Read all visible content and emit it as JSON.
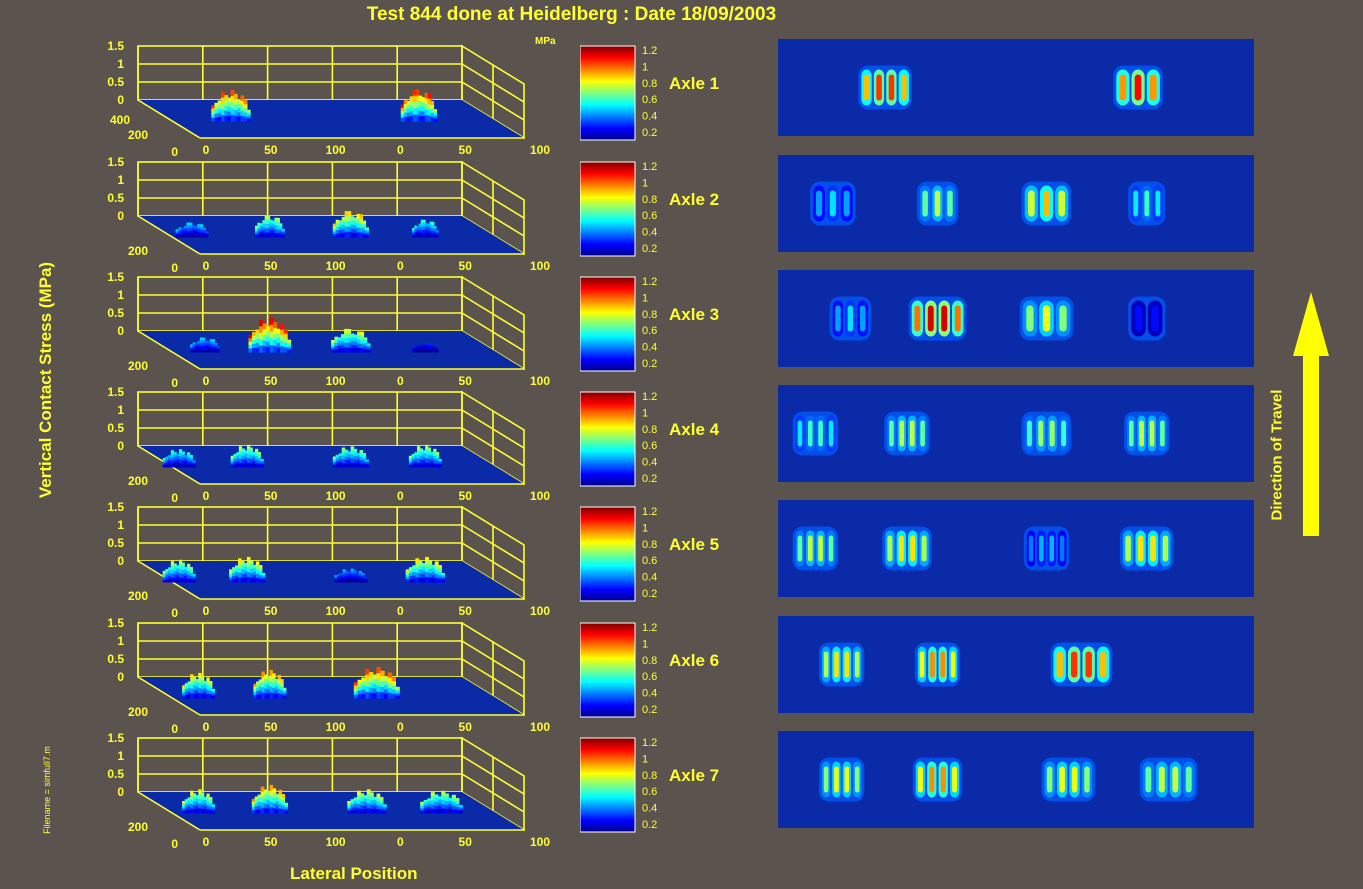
{
  "title": "Test 844 done at Heidelberg : Date 18/09/2003",
  "y_axis_label": "Vertical Contact Stress (MPa)",
  "x_axis_label": "Lateral Position",
  "units_label": "MPa",
  "filename": "Filename = simfull7.m",
  "direction_label": "Direction of Travel",
  "colors": {
    "background": "#5b534e",
    "axis_yellow": "#ffff33",
    "footprint_background": "#0a2aa8",
    "arrow": "#ffff00"
  },
  "colorbar_ticks": [
    "1.2",
    "1",
    "0.8",
    "0.6",
    "0.4",
    "0.2"
  ],
  "chart_data": {
    "type": "surface-3d + heatmap",
    "z_ticks": [
      "1.5",
      "1",
      "0.5",
      "0"
    ],
    "lateral_ticks": [
      "0",
      "50",
      "100",
      "0",
      "50",
      "100"
    ],
    "longitudinal_ticks_axle1": [
      "400",
      "200",
      "0"
    ],
    "longitudinal_ticks": [
      "200",
      "0"
    ],
    "colorbar_range": [
      0.1,
      1.25
    ],
    "axles": [
      {
        "label": "Axle 1",
        "tyres": [
          {
            "pos": 0.2,
            "peak": 1.05,
            "ribs": 4,
            "width": 0.12
          },
          {
            "pos": 0.78,
            "peak": 1.1,
            "ribs": 3,
            "width": 0.11
          }
        ]
      },
      {
        "label": "Axle 2",
        "tyres": [
          {
            "pos": 0.08,
            "peak": 0.5,
            "ribs": 3,
            "width": 0.1
          },
          {
            "pos": 0.32,
            "peak": 0.75,
            "ribs": 3,
            "width": 0.09
          },
          {
            "pos": 0.57,
            "peak": 0.9,
            "ribs": 3,
            "width": 0.11
          },
          {
            "pos": 0.8,
            "peak": 0.6,
            "ribs": 3,
            "width": 0.08
          }
        ]
      },
      {
        "label": "Axle 3",
        "tyres": [
          {
            "pos": 0.12,
            "peak": 0.5,
            "ribs": 3,
            "width": 0.09
          },
          {
            "pos": 0.32,
            "peak": 1.15,
            "ribs": 4,
            "width": 0.13
          },
          {
            "pos": 0.57,
            "peak": 0.8,
            "ribs": 3,
            "width": 0.12
          },
          {
            "pos": 0.8,
            "peak": 0.3,
            "ribs": 2,
            "width": 0.08
          }
        ]
      },
      {
        "label": "Axle 4",
        "tyres": [
          {
            "pos": 0.04,
            "peak": 0.6,
            "ribs": 4,
            "width": 0.1
          },
          {
            "pos": 0.25,
            "peak": 0.75,
            "ribs": 4,
            "width": 0.1
          },
          {
            "pos": 0.57,
            "peak": 0.7,
            "ribs": 4,
            "width": 0.11
          },
          {
            "pos": 0.8,
            "peak": 0.75,
            "ribs": 4,
            "width": 0.1
          }
        ]
      },
      {
        "label": "Axle 5",
        "tyres": [
          {
            "pos": 0.04,
            "peak": 0.75,
            "ribs": 4,
            "width": 0.1
          },
          {
            "pos": 0.25,
            "peak": 0.85,
            "ribs": 4,
            "width": 0.11
          },
          {
            "pos": 0.57,
            "peak": 0.45,
            "ribs": 4,
            "width": 0.1
          },
          {
            "pos": 0.8,
            "peak": 0.85,
            "ribs": 4,
            "width": 0.12
          }
        ]
      },
      {
        "label": "Axle 6",
        "tyres": [
          {
            "pos": 0.1,
            "peak": 0.85,
            "ribs": 4,
            "width": 0.1
          },
          {
            "pos": 0.32,
            "peak": 0.95,
            "ribs": 4,
            "width": 0.1
          },
          {
            "pos": 0.65,
            "peak": 1.05,
            "ribs": 4,
            "width": 0.14
          }
        ]
      },
      {
        "label": "Axle 7",
        "tyres": [
          {
            "pos": 0.1,
            "peak": 0.8,
            "ribs": 4,
            "width": 0.1
          },
          {
            "pos": 0.32,
            "peak": 0.95,
            "ribs": 4,
            "width": 0.11
          },
          {
            "pos": 0.62,
            "peak": 0.8,
            "ribs": 4,
            "width": 0.12
          },
          {
            "pos": 0.85,
            "peak": 0.75,
            "ribs": 4,
            "width": 0.13
          }
        ]
      }
    ]
  }
}
